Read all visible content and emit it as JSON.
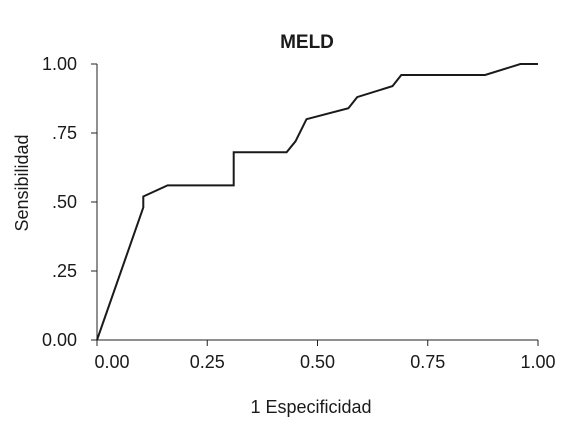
{
  "chart_data": {
    "type": "line",
    "title": "MELD",
    "xlabel": "1 Especificidad",
    "ylabel": "Sensibilidad",
    "xlim": [
      0,
      1
    ],
    "ylim": [
      0,
      1
    ],
    "x_ticks": [
      0,
      0.25,
      0.5,
      0.75,
      1
    ],
    "x_tick_labels": [
      "0.00",
      "0.25",
      "0.50",
      "0.75",
      "1.00"
    ],
    "y_ticks": [
      0,
      0.25,
      0.5,
      0.75,
      1
    ],
    "y_tick_labels": [
      "0.00",
      ".25",
      ".50",
      ".75",
      "1.00"
    ],
    "grid": false,
    "legend": "none",
    "series": [
      {
        "x": [
          0.0,
          0.105,
          0.105,
          0.16,
          0.31,
          0.31,
          0.43,
          0.45,
          0.475,
          0.57,
          0.59,
          0.67,
          0.69,
          0.88,
          0.96,
          1.0
        ],
        "y": [
          0.0,
          0.48,
          0.52,
          0.56,
          0.56,
          0.68,
          0.68,
          0.72,
          0.8,
          0.84,
          0.88,
          0.92,
          0.96,
          0.96,
          1.0,
          1.0
        ]
      }
    ],
    "colors": {
      "line": "#1a1a1a",
      "axis": "#222222",
      "text": "#1a1a1a"
    }
  }
}
